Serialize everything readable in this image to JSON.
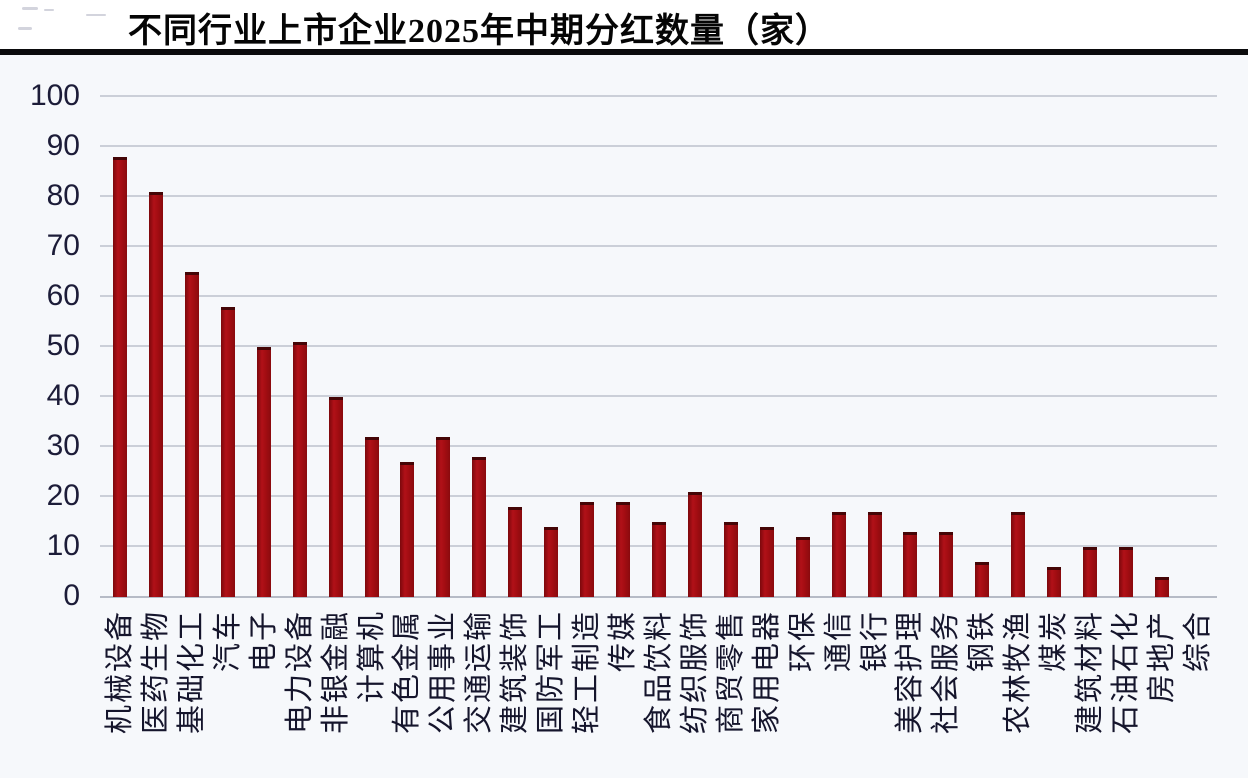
{
  "chart_data": {
    "type": "bar",
    "title": "不同行业上市企业2025年中期分红数量（家）",
    "categories": [
      "机械设备",
      "医药生物",
      "基础化工",
      "汽车",
      "电子",
      "电力设备",
      "非银金融",
      "计算机",
      "有色金属",
      "公用事业",
      "交通运输",
      "建筑装饰",
      "国防军工",
      "轻工制造",
      "传媒",
      "食品饮料",
      "纺织服饰",
      "商贸零售",
      "家用电器",
      "环保",
      "通信",
      "银行",
      "美容护理",
      "社会服务",
      "钢铁",
      "农林牧渔",
      "煤炭",
      "建筑材料",
      "石油石化",
      "房地产",
      "综合"
    ],
    "values": [
      88,
      81,
      65,
      58,
      50,
      51,
      40,
      32,
      27,
      32,
      28,
      18,
      14,
      19,
      19,
      15,
      21,
      15,
      14,
      12,
      17,
      17,
      13,
      13,
      7,
      17,
      6,
      10,
      10,
      4,
      0
    ],
    "xlabel": "",
    "ylabel": "",
    "ylim": [
      0,
      100
    ],
    "yticks": [
      0,
      10,
      20,
      30,
      40,
      50,
      60,
      70,
      80,
      90,
      100
    ],
    "grid": true,
    "legend": false,
    "bar_color": "#A30D12"
  },
  "colors": {
    "bar": "#A30D12",
    "bar_edge": "#7C080C",
    "bar_top_cap": "#450506",
    "gridline": "#CBCFD8",
    "axis_line": "#B6BBC6",
    "plot_background": "#F6F8FB",
    "title_rule": "#0B0B0D",
    "tick_text": "#1C1C38"
  }
}
